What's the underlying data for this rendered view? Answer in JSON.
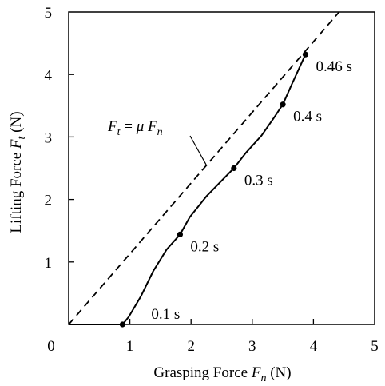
{
  "chart_data": {
    "type": "line",
    "title": "",
    "xlabel": {
      "prefix": "Grasping Force ",
      "symbol": "F",
      "sub": "n",
      "unit": " (N)"
    },
    "ylabel": {
      "prefix": "Lifting Force ",
      "symbol": "F",
      "sub": "t",
      "unit": " (N)"
    },
    "xlim": [
      0,
      5
    ],
    "ylim": [
      0,
      5
    ],
    "x_ticks": [
      "0",
      "1",
      "2",
      "3",
      "4",
      "5"
    ],
    "y_ticks": [
      "1",
      "2",
      "3",
      "4",
      "5"
    ],
    "grid": false,
    "series": [
      {
        "style": "solid",
        "x": [
          0.0,
          0.88,
          0.98,
          1.18,
          1.38,
          1.6,
          1.82,
          1.98,
          2.25,
          2.55,
          2.7,
          2.9,
          3.15,
          3.35,
          3.5,
          3.65,
          3.87
        ],
        "y": [
          0.0,
          0.0,
          0.12,
          0.45,
          0.85,
          1.2,
          1.44,
          1.72,
          2.05,
          2.35,
          2.5,
          2.75,
          3.02,
          3.3,
          3.52,
          3.85,
          4.32
        ]
      },
      {
        "style": "dashed",
        "x": [
          0.0,
          4.42
        ],
        "y": [
          0.0,
          5.0
        ]
      }
    ],
    "markers": [
      {
        "label": "0.1 s",
        "x": 0.88,
        "y": 0.0
      },
      {
        "label": "0.2 s",
        "x": 1.82,
        "y": 1.44
      },
      {
        "label": "0.3 s",
        "x": 2.7,
        "y": 2.5
      },
      {
        "label": "0.4 s",
        "x": 3.5,
        "y": 3.52
      },
      {
        "label": "0.46 s",
        "x": 3.87,
        "y": 4.32
      }
    ],
    "annotation": {
      "parts": [
        {
          "t": "F",
          "it": true
        },
        {
          "t": "t",
          "it": true,
          "sub": true
        },
        {
          "t": " = ",
          "it": false
        },
        {
          "t": "μ",
          "it": true
        },
        {
          "t": " F",
          "it": true
        },
        {
          "t": "n",
          "it": true,
          "sub": true
        }
      ],
      "pointer_to": {
        "x": 2.25,
        "y": 2.55
      }
    }
  }
}
